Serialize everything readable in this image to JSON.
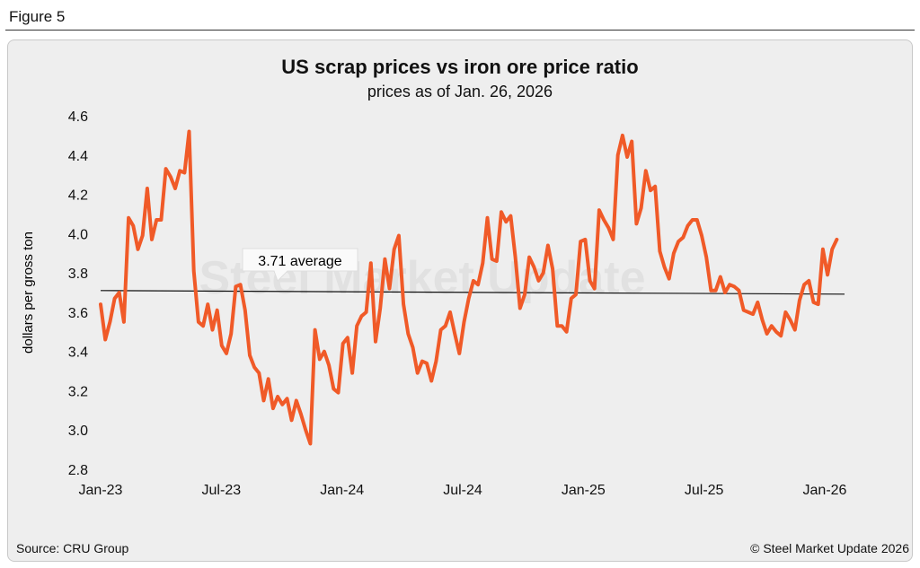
{
  "figure_label": "Figure 5",
  "source": "Source: CRU Group",
  "copyright": "© Steel Market Update 2026",
  "watermark": "Steel Market Update",
  "colors": {
    "line": "#f05a28",
    "average": "#111111",
    "panel": "#eeeeee"
  },
  "chart_data": {
    "type": "line",
    "title": "US scrap prices vs iron ore price ratio",
    "subtitle": "prices as of Jan. 26, 2026",
    "xlabel": "",
    "ylabel": "dollars per gross ton",
    "ylim": [
      2.8,
      4.6
    ],
    "yticks": [
      "2.8",
      "3.0",
      "3.2",
      "3.4",
      "3.6",
      "3.8",
      "4.0",
      "4.2",
      "4.4",
      "4.6"
    ],
    "xticks": [
      "Jan-23",
      "Jul-23",
      "Jan-24",
      "Jul-24",
      "Jan-25",
      "Jul-25",
      "Jan-26"
    ],
    "x_range_months_from_jan23": [
      0,
      36.6
    ],
    "grid": false,
    "average": {
      "value": 3.71,
      "label": "3.71 average"
    },
    "series": [
      {
        "name": "ratio",
        "frequency": "weekly",
        "values": [
          3.64,
          3.46,
          3.55,
          3.67,
          3.7,
          3.55,
          4.08,
          4.04,
          3.92,
          3.99,
          4.23,
          3.97,
          4.07,
          4.07,
          4.33,
          4.29,
          4.23,
          4.32,
          4.31,
          4.52,
          3.81,
          3.55,
          3.53,
          3.64,
          3.51,
          3.61,
          3.43,
          3.39,
          3.49,
          3.73,
          3.74,
          3.61,
          3.38,
          3.32,
          3.29,
          3.15,
          3.26,
          3.11,
          3.17,
          3.13,
          3.16,
          3.05,
          3.15,
          3.08,
          3.0,
          2.93,
          3.51,
          3.36,
          3.4,
          3.33,
          3.21,
          3.19,
          3.44,
          3.47,
          3.29,
          3.53,
          3.58,
          3.6,
          3.85,
          3.45,
          3.62,
          3.87,
          3.72,
          3.92,
          3.99,
          3.64,
          3.49,
          3.42,
          3.29,
          3.35,
          3.34,
          3.25,
          3.35,
          3.51,
          3.53,
          3.6,
          3.49,
          3.39,
          3.55,
          3.67,
          3.76,
          3.74,
          3.85,
          4.08,
          3.87,
          3.86,
          4.11,
          4.06,
          4.09,
          3.88,
          3.62,
          3.69,
          3.88,
          3.83,
          3.76,
          3.8,
          3.94,
          3.82,
          3.53,
          3.53,
          3.5,
          3.67,
          3.69,
          3.96,
          3.97,
          3.76,
          3.72,
          4.12,
          4.07,
          4.03,
          3.97,
          4.4,
          4.5,
          4.39,
          4.47,
          4.05,
          4.13,
          4.32,
          4.22,
          4.24,
          3.91,
          3.83,
          3.77,
          3.9,
          3.96,
          3.98,
          4.04,
          4.07,
          4.07,
          3.99,
          3.88,
          3.71,
          3.71,
          3.78,
          3.7,
          3.74,
          3.73,
          3.71,
          3.61,
          3.6,
          3.59,
          3.65,
          3.56,
          3.49,
          3.53,
          3.5,
          3.48,
          3.6,
          3.56,
          3.51,
          3.66,
          3.74,
          3.76,
          3.65,
          3.64,
          3.92,
          3.79,
          3.92,
          3.97
        ]
      }
    ]
  }
}
